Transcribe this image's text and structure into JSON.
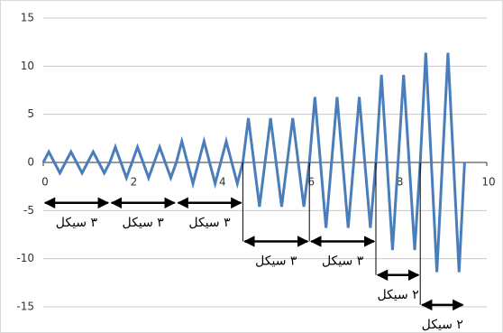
{
  "chart_data": {
    "type": "line",
    "x": [
      0,
      0.125,
      0.25,
      0.375,
      0.5,
      0.625,
      0.75,
      0.875,
      1,
      1.125,
      1.25,
      1.375,
      1.5,
      1.625,
      1.75,
      1.875,
      2,
      2.125,
      2.25,
      2.375,
      2.5,
      2.625,
      2.75,
      2.875,
      3,
      3.125,
      3.25,
      3.375,
      3.5,
      3.625,
      3.75,
      3.875,
      4,
      4.125,
      4.25,
      4.375,
      4.5,
      4.625,
      4.75,
      4.875,
      5,
      5.125,
      5.25,
      5.375,
      5.5,
      5.625,
      5.75,
      5.875,
      6,
      6.125,
      6.25,
      6.375,
      6.5,
      6.625,
      6.75,
      6.875,
      7,
      7.125,
      7.25,
      7.375,
      7.5,
      7.625,
      7.75,
      7.875,
      8,
      8.125,
      8.25,
      8.375,
      8.5,
      8.625,
      8.75,
      8.875,
      9,
      9.125,
      9.25,
      9.375,
      9.5
    ],
    "series": [
      {
        "color": "#4a7ebb",
        "values": [
          0,
          1.1,
          0,
          -1.1,
          0,
          1.1,
          0,
          -1.1,
          0,
          1.1,
          0,
          -1.1,
          0,
          1.6,
          0,
          -1.6,
          0,
          1.6,
          0,
          -1.6,
          0,
          1.6,
          0,
          -1.6,
          0,
          2.2,
          0,
          -2.2,
          0,
          2.2,
          0,
          -2.2,
          0,
          2.2,
          0,
          -2.2,
          0,
          4.6,
          0,
          -4.6,
          0,
          4.6,
          0,
          -4.6,
          0,
          4.6,
          0,
          -4.6,
          0,
          6.8,
          0,
          -6.8,
          0,
          6.8,
          0,
          -6.8,
          0,
          6.8,
          0,
          -6.8,
          0,
          9.1,
          0,
          -9.1,
          0,
          9.1,
          0,
          -9.1,
          0,
          11.4,
          0,
          -11.4,
          0,
          11.4,
          0,
          -11.4,
          0
        ]
      }
    ],
    "xlim": [
      0,
      10
    ],
    "xticks": [
      0,
      2,
      4,
      6,
      8,
      10
    ],
    "ylim": [
      -15,
      15
    ],
    "yticks": [
      -15,
      -10,
      -5,
      0,
      5,
      10,
      15
    ],
    "grid": true,
    "annotations": [
      {
        "text": "۳ سیکل",
        "x": [
          0,
          1.5
        ],
        "y": -4.2
      },
      {
        "text": "۳ سیکل",
        "x": [
          1.5,
          3
        ],
        "y": -4.2
      },
      {
        "text": "۳ سیکل",
        "x": [
          3,
          4.5
        ],
        "y": -4.2
      },
      {
        "text": "۳ سیکل",
        "x": [
          4.5,
          6
        ],
        "y": -8.2
      },
      {
        "text": "۳ سیکل",
        "x": [
          6,
          7.5
        ],
        "y": -8.2
      },
      {
        "text": "۲ سیکل",
        "x": [
          7.5,
          8.5
        ],
        "y": -11.7
      },
      {
        "text": "۲ سیکل",
        "x": [
          8.5,
          9.5
        ],
        "y": -14.8
      }
    ]
  }
}
